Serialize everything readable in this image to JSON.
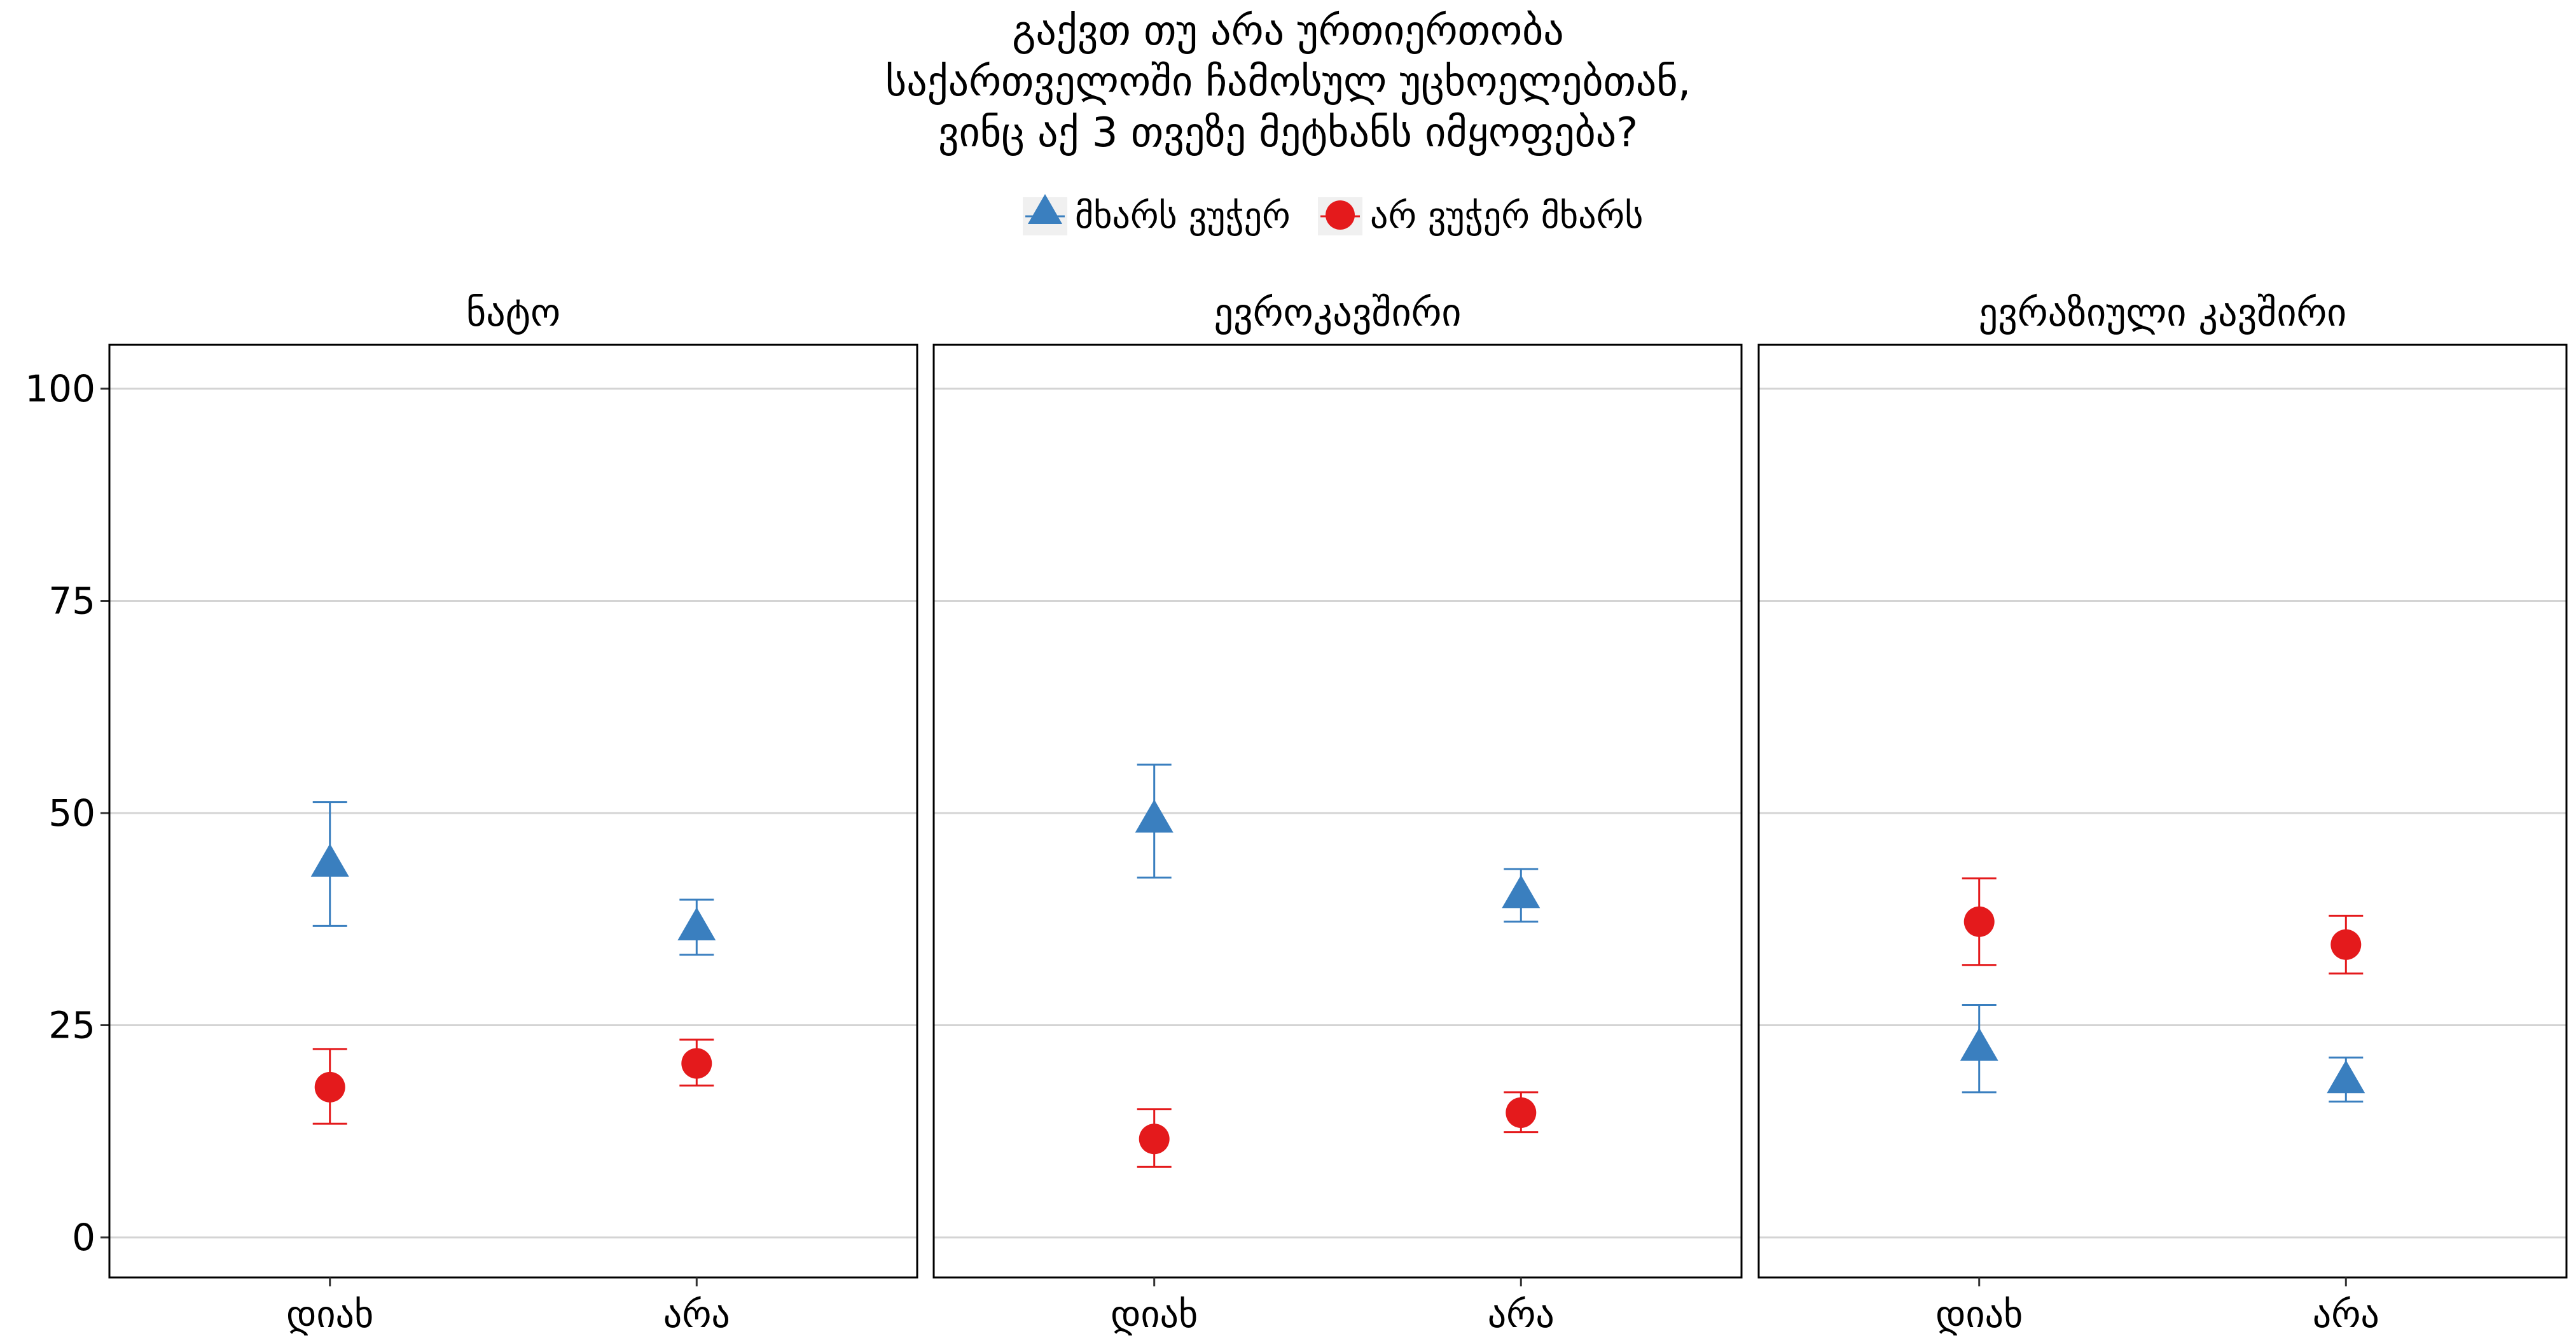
{
  "chart_data": {
    "type": "scatter",
    "title_lines": [
      "გაქვთ თუ არა ურთიერთობა",
      "საქართველოში ჩამოსულ უცხოელებთან,",
      "ვინც აქ 3 თვეზე მეტხანს იმყოფება?"
    ],
    "ylim": [
      -5,
      105
    ],
    "y_ticks": [
      0,
      25,
      50,
      75,
      100
    ],
    "grid": true,
    "legend_placement": "top",
    "categories": [
      "დიახ",
      "არა"
    ],
    "series_meta": [
      {
        "name": "მხარს ვუჭერ",
        "color": "#3A7FBF",
        "marker": "triangle"
      },
      {
        "name": "არ ვუჭერ მხარს",
        "color": "#E41A1C",
        "marker": "circle"
      }
    ],
    "panels": [
      {
        "title": "ნატო",
        "series": [
          {
            "values": [
              44,
              36.5
            ],
            "lower": [
              36.7,
              33.3
            ],
            "upper": [
              51.3,
              39.8
            ]
          },
          {
            "values": [
              17.7,
              20.5
            ],
            "lower": [
              13.4,
              17.9
            ],
            "upper": [
              22.2,
              23.3
            ]
          }
        ]
      },
      {
        "title": "ევროკავშირი",
        "series": [
          {
            "values": [
              49.2,
              40.3
            ],
            "lower": [
              42.4,
              37.2
            ],
            "upper": [
              55.7,
              43.4
            ]
          },
          {
            "values": [
              11.6,
              14.7
            ],
            "lower": [
              8.3,
              12.4
            ],
            "upper": [
              15.1,
              17.1
            ]
          }
        ]
      },
      {
        "title": "ევრაზიული კავშირი",
        "series": [
          {
            "values": [
              22.3,
              18.5
            ],
            "lower": [
              17.1,
              16.0
            ],
            "upper": [
              27.4,
              21.2
            ]
          },
          {
            "values": [
              37.2,
              34.5
            ],
            "lower": [
              32.1,
              31.1
            ],
            "upper": [
              42.3,
              37.9
            ]
          }
        ]
      }
    ]
  }
}
